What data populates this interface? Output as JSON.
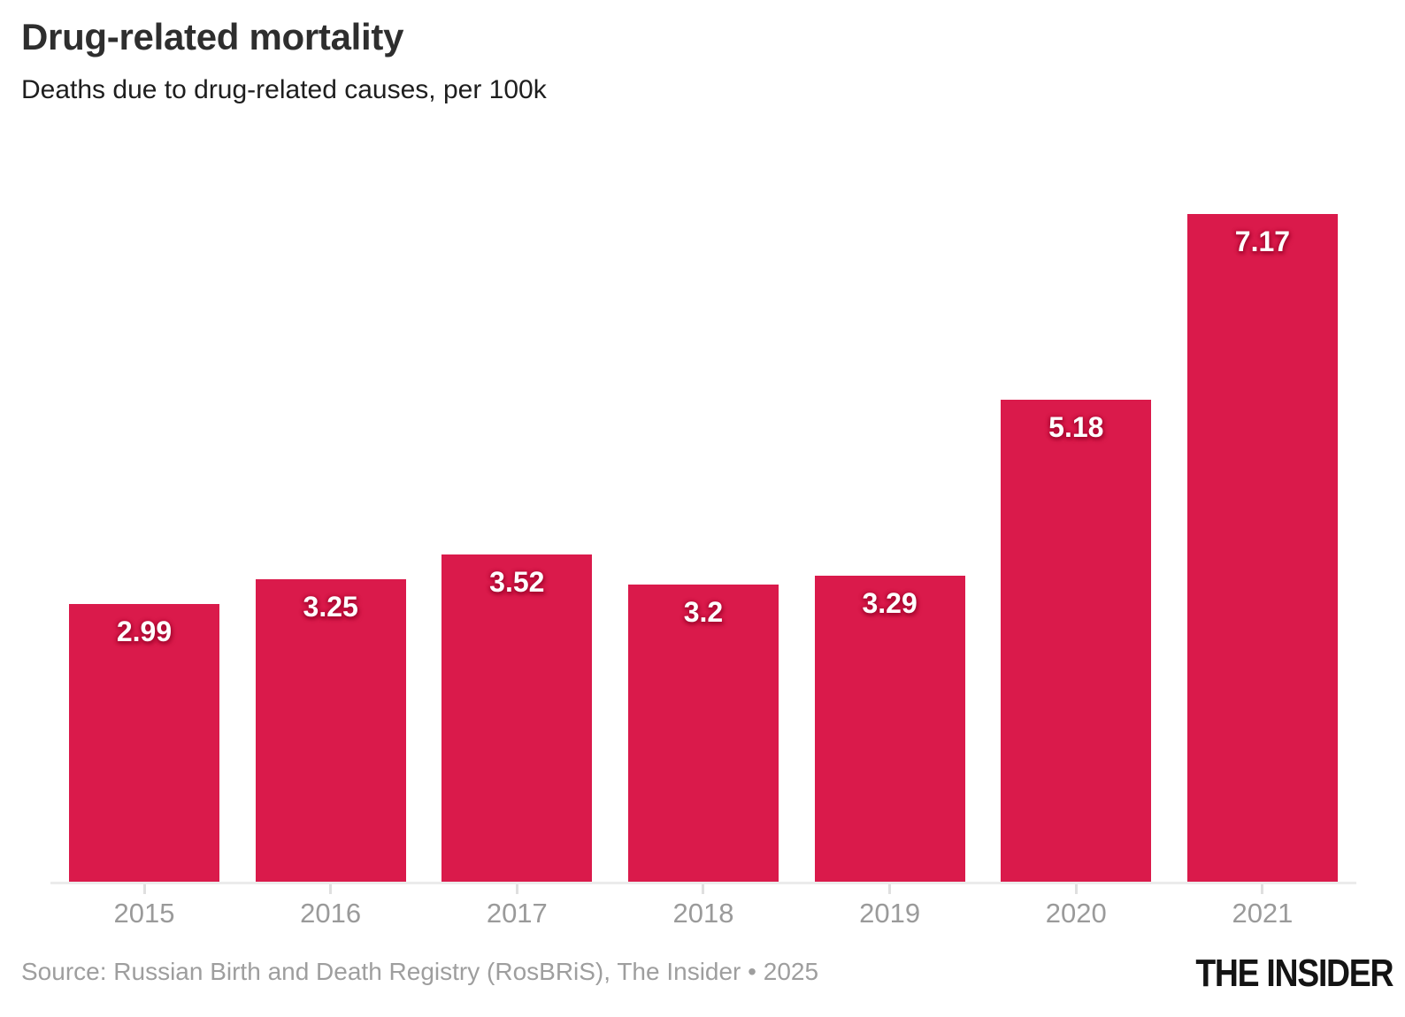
{
  "header": {
    "title": "Drug-related mortality",
    "subtitle": "Deaths due to drug-related causes, per 100k"
  },
  "chart_data": {
    "type": "bar",
    "categories": [
      "2015",
      "2016",
      "2017",
      "2018",
      "2019",
      "2020",
      "2021"
    ],
    "values": [
      2.99,
      3.25,
      3.52,
      3.2,
      3.29,
      5.18,
      7.17
    ],
    "value_labels": [
      "2.99",
      "3.25",
      "3.52",
      "3.2",
      "3.29",
      "5.18",
      "7.17"
    ],
    "title": "Drug-related mortality",
    "subtitle": "Deaths due to drug-related causes, per 100k",
    "xlabel": "",
    "ylabel": "",
    "ylim": [
      0,
      7.4
    ],
    "grid": "off",
    "legend": "none",
    "bar_color": "#DA1A4B",
    "value_label_color": "#FFFFFF",
    "axis_label_color": "#9A9A9A"
  },
  "footer": {
    "source": "Source: Russian Birth and Death Registry (RosBRiS), The Insider • 2025",
    "brand": "THE INSIDER"
  }
}
